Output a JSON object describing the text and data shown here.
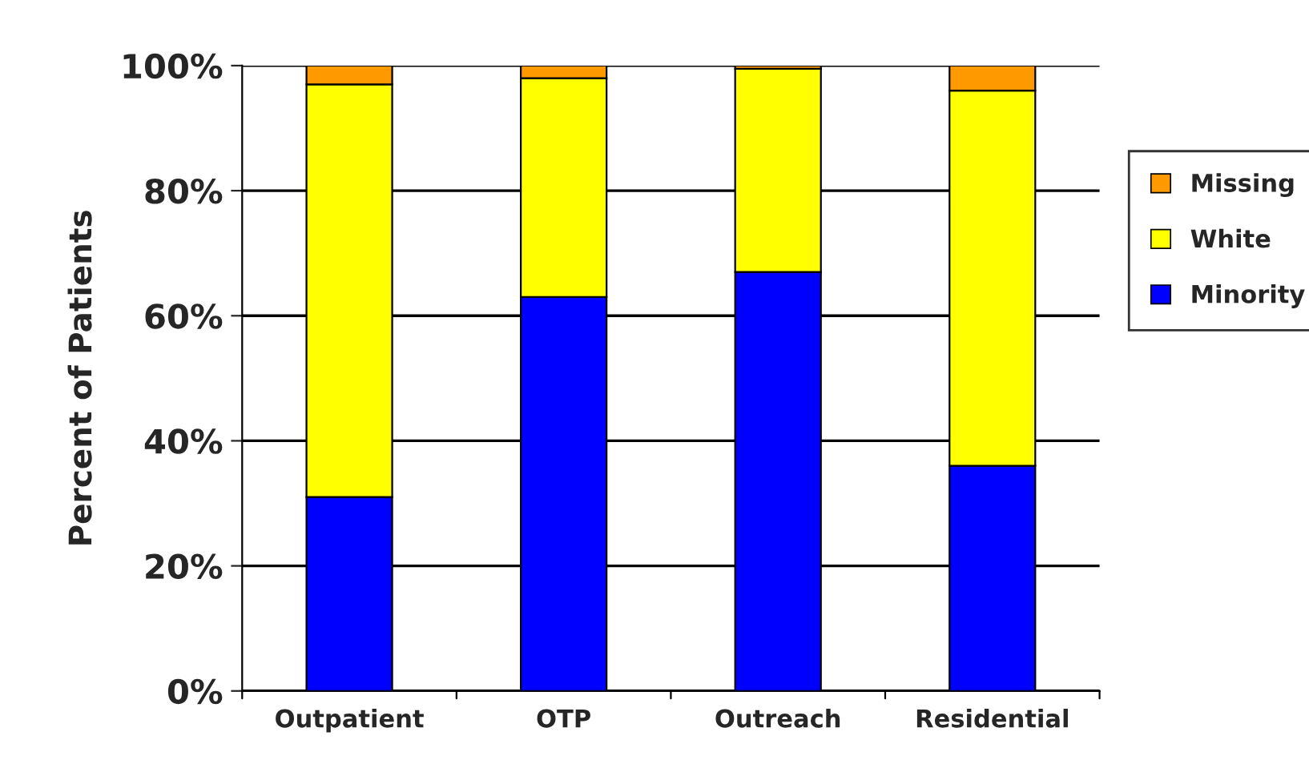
{
  "chart_data": {
    "type": "bar",
    "stacked": true,
    "ylabel": "Percent of Patients",
    "categories": [
      "Outpatient",
      "OTP",
      "Outreach",
      "Residential"
    ],
    "series": [
      {
        "name": "Minority",
        "color": "#0000ff",
        "values": [
          31,
          63,
          67,
          36
        ]
      },
      {
        "name": "White",
        "color": "#ffff00",
        "values": [
          66,
          35,
          32.5,
          60
        ]
      },
      {
        "name": "Missing",
        "color": "#ff9900",
        "values": [
          3,
          2,
          0.5,
          4
        ]
      }
    ],
    "ylim": [
      0,
      100
    ],
    "yticks": [
      {
        "value": 0,
        "label": "0%"
      },
      {
        "value": 20,
        "label": "20%"
      },
      {
        "value": 40,
        "label": "40%"
      },
      {
        "value": 60,
        "label": "60%"
      },
      {
        "value": 80,
        "label": "80%"
      },
      {
        "value": 100,
        "label": "100%"
      }
    ],
    "grid": "y",
    "legend": "right"
  }
}
